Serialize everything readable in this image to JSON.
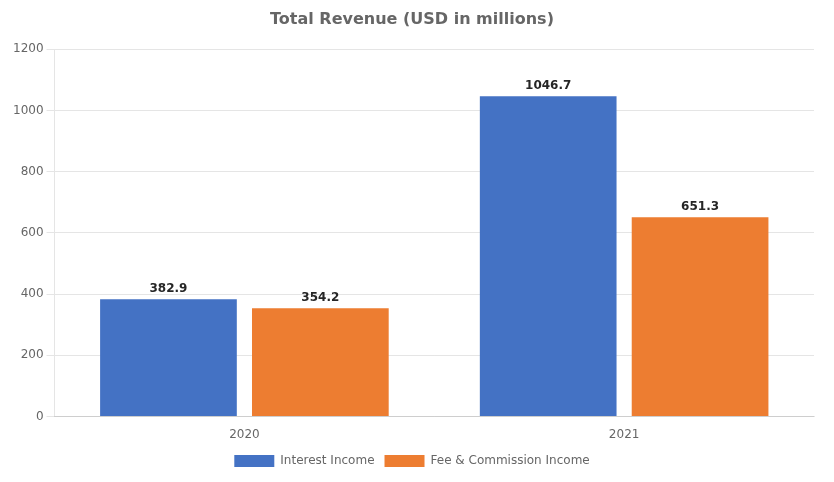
{
  "chart_data": {
    "type": "bar",
    "title": "Total Revenue (USD in millions)",
    "categories": [
      "2020",
      "2021"
    ],
    "series": [
      {
        "name": "Interest Income",
        "color": "#4472C4",
        "values": [
          382.9,
          1046.7
        ]
      },
      {
        "name": "Fee & Commission Income",
        "color": "#ED7D31",
        "values": [
          354.2,
          651.3
        ]
      }
    ],
    "ylim": [
      0,
      1200
    ],
    "yticks": [
      0,
      200,
      400,
      600,
      800,
      1000,
      1200
    ],
    "grid": true,
    "legend": "bottom",
    "data_labels": true
  }
}
